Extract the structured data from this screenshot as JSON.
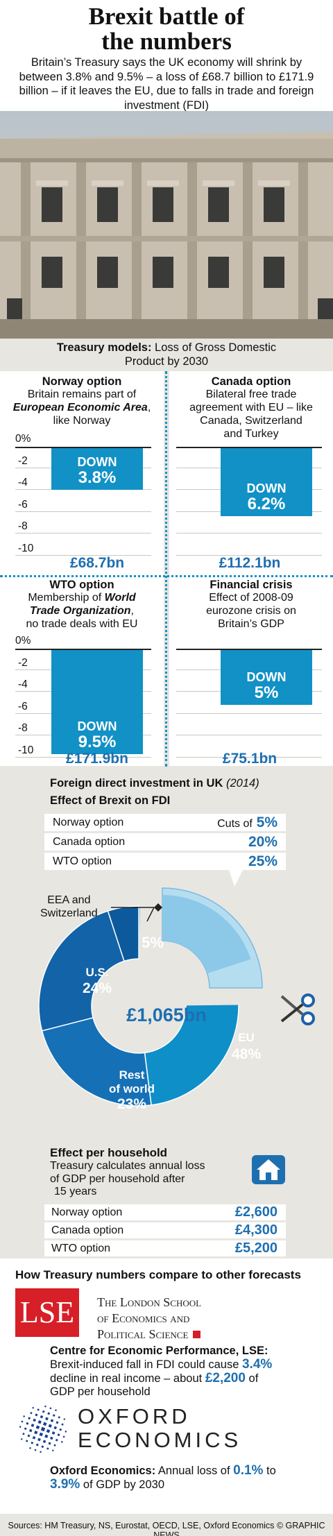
{
  "title_line1": "Brexit battle of",
  "title_line2": "the numbers",
  "intro": "Britain’s Treasury says the UK economy will shrink by between 3.8% and 9.5% – a loss of £68.7 billion to £171.9 billion – if it leaves the EU, due to falls in trade and foreign investment (FDI)",
  "models_heading_bold": "Treasury models:",
  "models_heading_rest": " Loss of Gross Domestic",
  "models_heading_line2": "Product by 2030",
  "axis_ticks": [
    "0%",
    "-2",
    "-4",
    "-6",
    "-8",
    "-10"
  ],
  "panels": {
    "norway": {
      "title": "Norway option",
      "desc1": "Britain remains part of",
      "desc2": "European Economic Area",
      "desc3": "like Norway",
      "down": "DOWN",
      "pct": "3.8%",
      "bn": "£68.7bn"
    },
    "canada": {
      "title": "Canada option",
      "desc1": "Bilateral free trade",
      "desc2": "agreement with EU – like",
      "desc3": "Canada, Switzerland",
      "desc4": "and Turkey",
      "down": "DOWN",
      "pct": "6.2%",
      "bn": "£112.1bn"
    },
    "wto": {
      "title": "WTO option",
      "desc1": "Membership of",
      "desc2": "World",
      "desc3": "Trade Organization",
      "desc4": "no trade deals with EU",
      "down": "DOWN",
      "pct": "9.5%",
      "bn": "£171.9bn"
    },
    "crisis": {
      "title": "Financial crisis",
      "desc1": "Effect of 2008-09",
      "desc2": "eurozone crisis on",
      "desc3": "Britain’s GDP",
      "down": "DOWN",
      "pct": "5%",
      "bn": "£75.1bn"
    }
  },
  "fdi": {
    "heading": "Foreign direct investment in UK",
    "heading_year": "(2014)",
    "subheading": "Effect of Brexit on FDI",
    "rows": [
      {
        "label": "Norway option",
        "prefix": "Cuts of",
        "value": "5%"
      },
      {
        "label": "Canada option",
        "prefix": "",
        "value": "20%"
      },
      {
        "label": "WTO option",
        "prefix": "",
        "value": "25%"
      }
    ],
    "callout_eea_1": "EEA and",
    "callout_eea_2": "Switzerland",
    "total": "£1,065bn",
    "slices": {
      "eea": {
        "label": "",
        "pct": "5%"
      },
      "us": {
        "label": "U.S.",
        "pct": "24%"
      },
      "rest1": "Rest",
      "rest2": "of world",
      "rest_pct": "23%",
      "eu": {
        "label": "EU",
        "pct": "48%"
      }
    }
  },
  "chart_data": [
    {
      "type": "bar",
      "title": "Treasury models: Loss of Gross Domestic Product by 2030",
      "categories": [
        "Norway option",
        "Canada option",
        "WTO option",
        "Financial crisis"
      ],
      "values": [
        -3.8,
        -6.2,
        -9.5,
        -5.0
      ],
      "data_labels": [
        "£68.7bn",
        "£112.1bn",
        "£171.9bn",
        "£75.1bn"
      ],
      "ylim": [
        -10,
        0
      ],
      "ylabel": ""
    },
    {
      "type": "table",
      "title": "Effect of Brexit on FDI",
      "categories": [
        "Norway option",
        "Canada option",
        "WTO option"
      ],
      "values": [
        5,
        20,
        25
      ]
    },
    {
      "type": "pie",
      "title": "Foreign direct investment in UK (2014)",
      "total_label": "£1,065bn",
      "categories": [
        "EU",
        "Rest of world",
        "U.S.",
        "EEA and Switzerland"
      ],
      "values": [
        48,
        23,
        24,
        5
      ]
    },
    {
      "type": "table",
      "title": "Effect per household",
      "categories": [
        "Norway option",
        "Canada option",
        "WTO option"
      ],
      "values": [
        2600,
        4300,
        5200
      ]
    }
  ],
  "household": {
    "heading": "Effect per household",
    "desc1": "Treasury calculates annual loss",
    "desc2": "of GDP per household after",
    "desc3": "15 years",
    "rows": [
      {
        "label": "Norway option",
        "value": "£2,600"
      },
      {
        "label": "Canada option",
        "value": "£4,300"
      },
      {
        "label": "WTO option",
        "value": "£5,200"
      }
    ]
  },
  "compare_heading": "How Treasury numbers compare to other forecasts",
  "lse": {
    "logo": "LSE",
    "name1": "The London School",
    "name2": "of Economics and",
    "name3": "Political Science",
    "heading": "Centre for Economic Performance, LSE:",
    "t1": "Brexit-induced fall in FDI could cause",
    "v1": "3.4%",
    "t2": "decline in real income – about",
    "v2": "£2,200",
    "t3": "of",
    "t4": "GDP per household"
  },
  "oxford": {
    "name1": "OXFORD",
    "name2": "ECONOMICS",
    "heading": "Oxford Economics:",
    "t1": "Annual loss of",
    "v1": "0.1%",
    "t2": "to",
    "v2": "3.9%",
    "t3": "of GDP by 2030"
  },
  "sources": "Sources: HM Treasury, NS, Eurostat, OECD, LSE, Oxford Economics © GRAPHIC NEWS",
  "colors": {
    "bar": "#1191c6",
    "accent": "#1e6fb0",
    "panel": "#e7e6e1",
    "lse_red": "#d71f27",
    "eu": "#0e8fc8",
    "rest": "#1670b6",
    "us": "#1263a8",
    "eea": "#0c5a9c"
  }
}
